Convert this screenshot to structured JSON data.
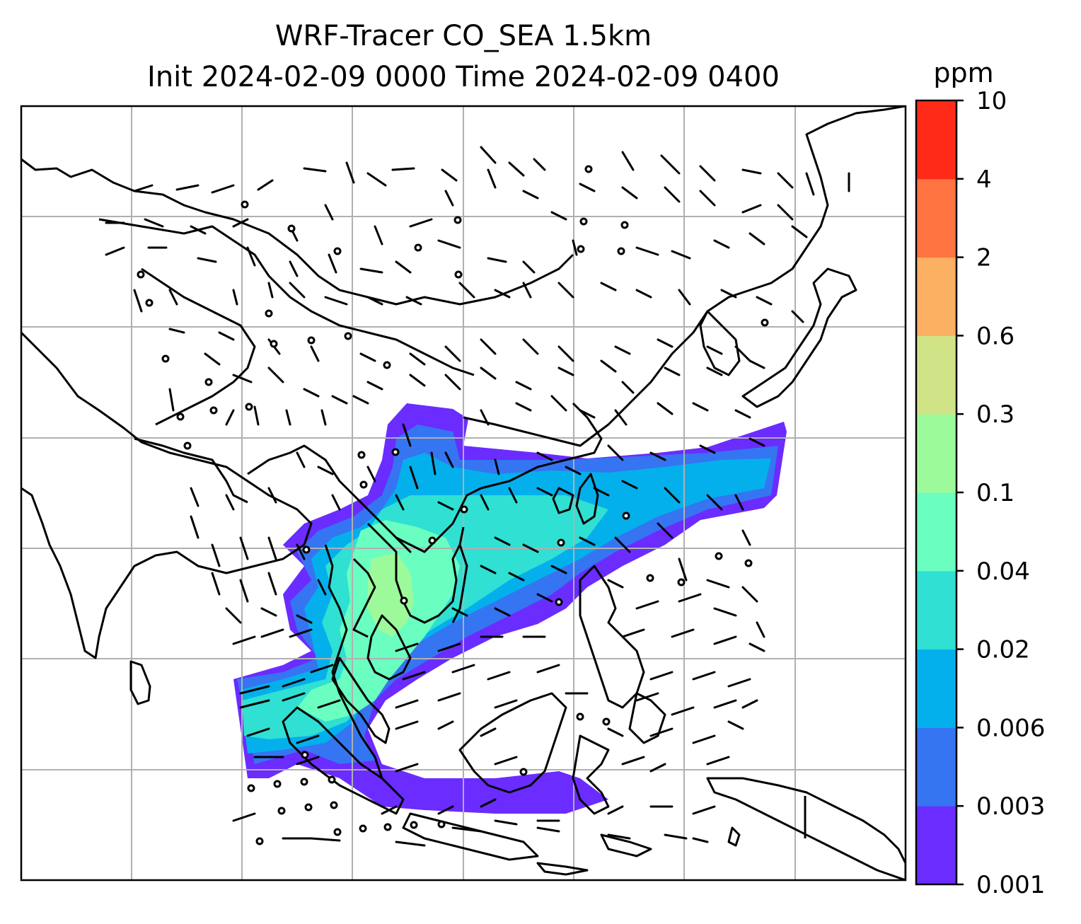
{
  "title": {
    "line1": "WRF-Tracer CO_SEA 1.5km",
    "line2": "Init 2024-02-09 0000 Time 2024-02-09 0400"
  },
  "colorbar": {
    "unit": "ppm",
    "levels": [
      "0.001",
      "0.003",
      "0.006",
      "0.02",
      "0.04",
      "0.1",
      "0.3",
      "0.6",
      "2",
      "4",
      "10"
    ],
    "colors": [
      "#6a2cff",
      "#3575f2",
      "#04b0ec",
      "#2fe0d3",
      "#6affc0",
      "#9dfa9a",
      "#d1e387",
      "#fcb062",
      "#ff7441",
      "#ff2a18"
    ]
  },
  "map": {
    "gridlines": true,
    "coastline_color": "#000000",
    "features": [
      "coastlines",
      "country-borders",
      "wind-barbs",
      "tracer-concentration-contours"
    ]
  }
}
